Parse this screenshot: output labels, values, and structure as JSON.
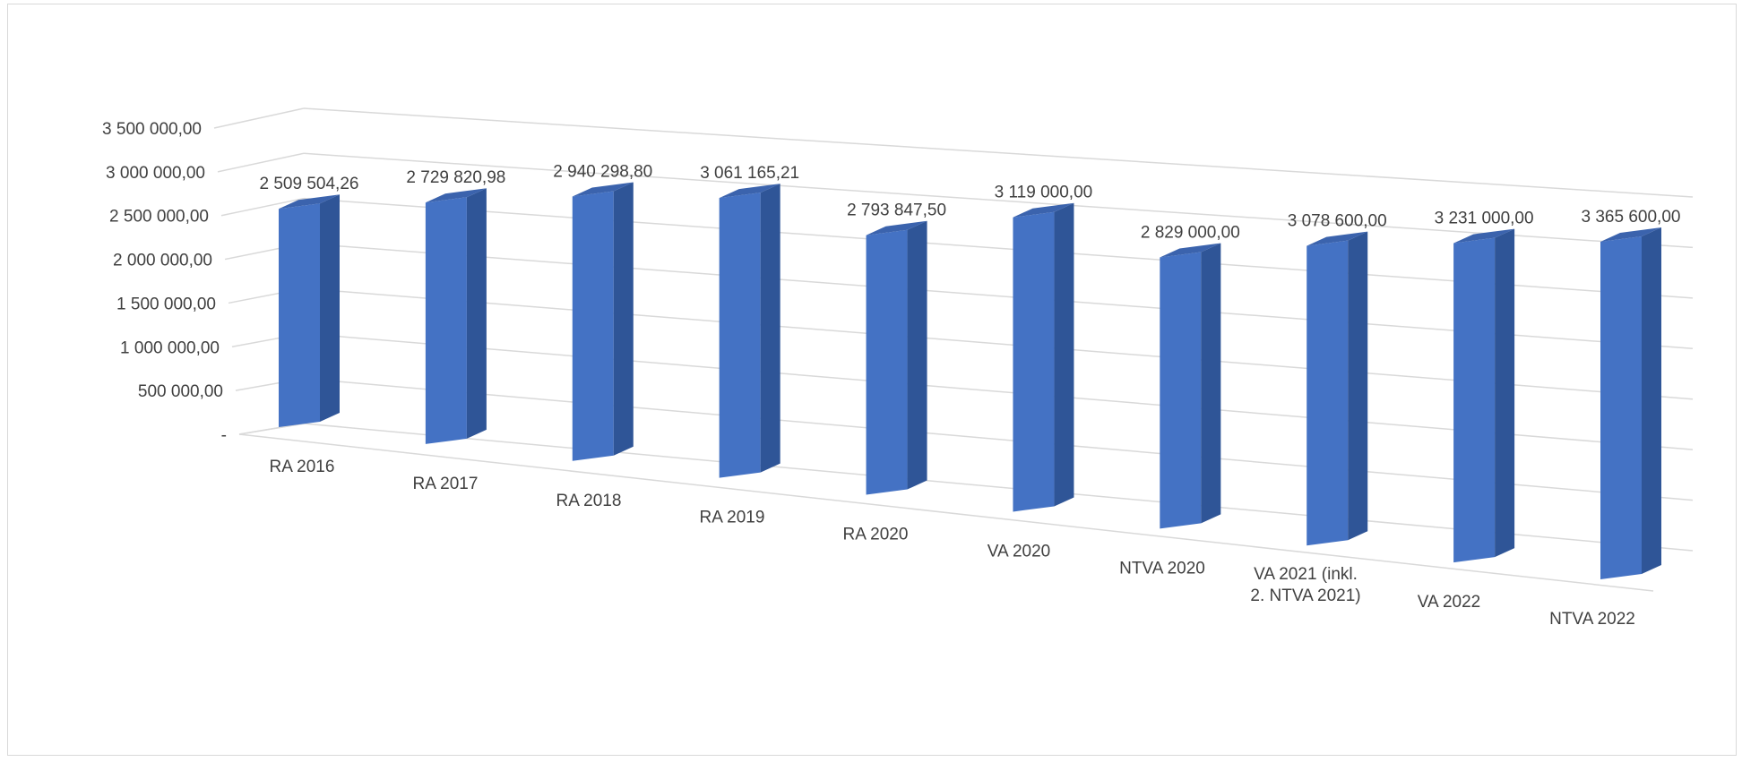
{
  "chart_data": {
    "type": "bar",
    "style": "3d-column",
    "title": "",
    "xlabel": "",
    "ylabel": "",
    "ylim": [
      0,
      3500000
    ],
    "grid": true,
    "legend": "none",
    "bar_color": "#4472c4",
    "y_ticks": [
      0,
      500000,
      1000000,
      1500000,
      2000000,
      2500000,
      3000000,
      3500000
    ],
    "y_tick_labels": [
      "-",
      "500 000,00",
      "1 000 000,00",
      "1 500 000,00",
      "2 000 000,00",
      "2 500 000,00",
      "3 000 000,00",
      "3 500 000,00"
    ],
    "categories": [
      "RA 2016",
      "RA 2017",
      "RA 2018",
      "RA 2019",
      "RA 2020",
      "VA 2020",
      "NTVA 2020",
      "VA 2021 (inkl.\n2. NTVA 2021)",
      "VA 2022",
      "NTVA 2022"
    ],
    "values": [
      2509504.26,
      2729820.98,
      2940298.8,
      3061165.21,
      2793847.5,
      3119000.0,
      2829000.0,
      3078600.0,
      3231000.0,
      3365600.0
    ],
    "value_labels": [
      "2 509 504,26",
      "2 729 820,98",
      "2 940 298,80",
      "3 061 165,21",
      "2 793 847,50",
      "3 119 000,00",
      "2 829 000,00",
      "3 078 600,00",
      "3 231 000,00",
      "3 365 600,00"
    ]
  }
}
